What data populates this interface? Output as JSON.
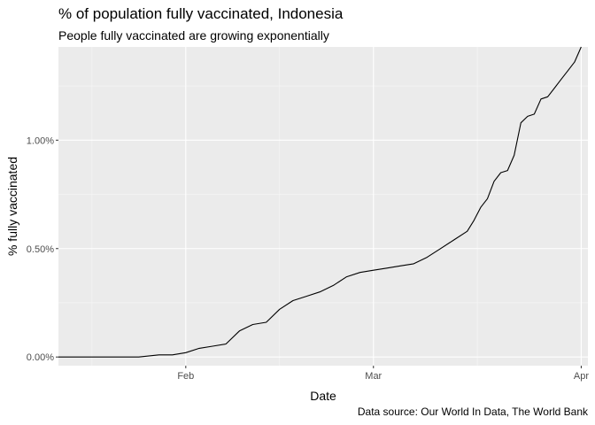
{
  "chart_data": {
    "type": "line",
    "title": "% of population fully vaccinated, Indonesia",
    "subtitle": "People fully vaccinated are growing exponentially",
    "caption": "Data source: Our World In Data, The World Bank",
    "xlabel": "Date",
    "ylabel": "% fully vaccinated",
    "xlim": [
      "2021-01-13",
      "2021-04-02"
    ],
    "ylim": [
      -0.0004,
      0.0143
    ],
    "x_ticks": [
      {
        "date": "2021-02-01",
        "label": "Feb"
      },
      {
        "date": "2021-03-01",
        "label": "Mar"
      },
      {
        "date": "2021-04-01",
        "label": "Apr"
      }
    ],
    "y_ticks": [
      {
        "value": 0.0,
        "label": "0.00%"
      },
      {
        "value": 0.005,
        "label": "0.50%"
      },
      {
        "value": 0.01,
        "label": "1.00%"
      }
    ],
    "grid": true,
    "series": [
      {
        "x": [
          "2021-01-13",
          "2021-01-20",
          "2021-01-25",
          "2021-01-28",
          "2021-01-30",
          "2021-02-01",
          "2021-02-03",
          "2021-02-05",
          "2021-02-07",
          "2021-02-09",
          "2021-02-11",
          "2021-02-13",
          "2021-02-15",
          "2021-02-17",
          "2021-02-19",
          "2021-02-21",
          "2021-02-23",
          "2021-02-25",
          "2021-02-27",
          "2021-03-01",
          "2021-03-03",
          "2021-03-05",
          "2021-03-07",
          "2021-03-09",
          "2021-03-11",
          "2021-03-13",
          "2021-03-15",
          "2021-03-16",
          "2021-03-17",
          "2021-03-18",
          "2021-03-19",
          "2021-03-20",
          "2021-03-21",
          "2021-03-22",
          "2021-03-23",
          "2021-03-24",
          "2021-03-25",
          "2021-03-26",
          "2021-03-27",
          "2021-03-28",
          "2021-03-29",
          "2021-03-30",
          "2021-03-31",
          "2021-04-01"
        ],
        "values": [
          0.0,
          0.0,
          0.0,
          0.0001,
          0.0001,
          0.0002,
          0.0004,
          0.0005,
          0.0006,
          0.0012,
          0.0015,
          0.0016,
          0.0022,
          0.0026,
          0.0028,
          0.003,
          0.0033,
          0.0037,
          0.0039,
          0.004,
          0.0041,
          0.0042,
          0.0043,
          0.0046,
          0.005,
          0.0054,
          0.0058,
          0.0063,
          0.0069,
          0.0073,
          0.0081,
          0.0085,
          0.0086,
          0.0093,
          0.0108,
          0.0111,
          0.0112,
          0.0119,
          0.012,
          0.0124,
          0.0128,
          0.0132,
          0.0136,
          0.0143
        ]
      }
    ]
  }
}
